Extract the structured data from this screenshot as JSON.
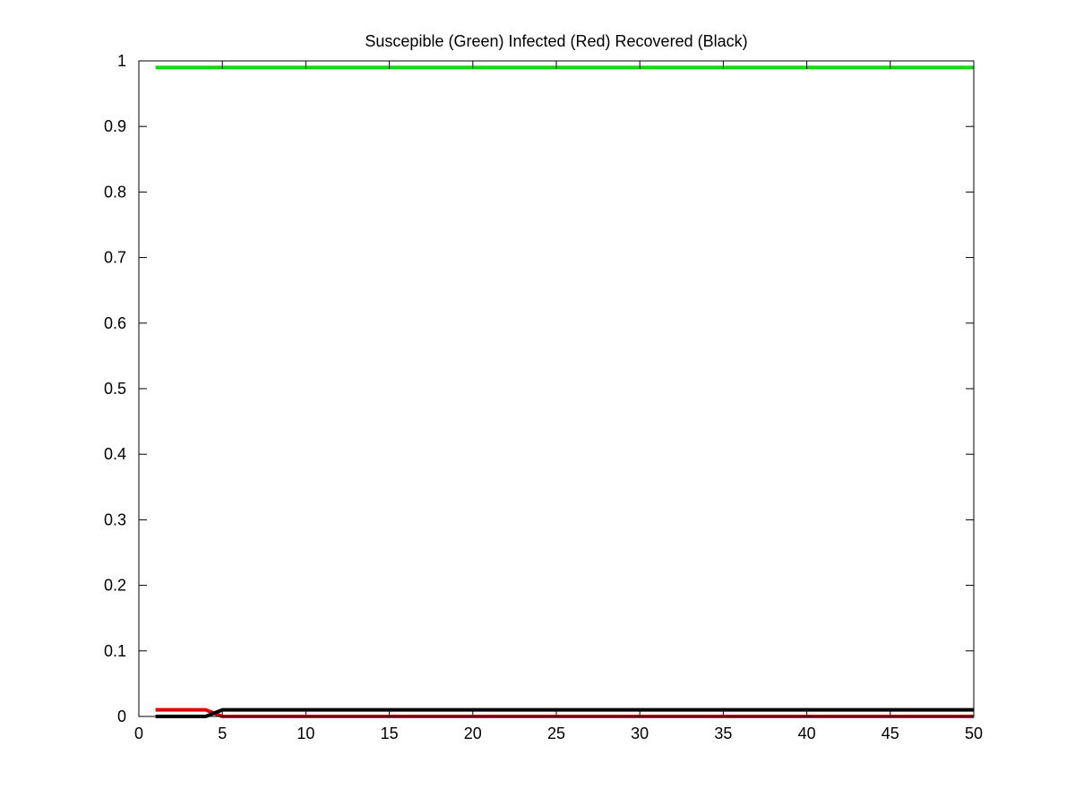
{
  "chart_data": {
    "type": "line",
    "title": "Suscepible (Green) Infected (Red) Recovered (Black)",
    "xlabel": "",
    "ylabel": "",
    "xlim": [
      0,
      50
    ],
    "ylim": [
      0,
      1
    ],
    "xticks": [
      0,
      5,
      10,
      15,
      20,
      25,
      30,
      35,
      40,
      45,
      50
    ],
    "yticks": [
      0,
      0.1,
      0.2,
      0.3,
      0.4,
      0.5,
      0.6,
      0.7,
      0.8,
      0.9,
      1
    ],
    "grid": false,
    "legend": "none",
    "series": [
      {
        "color": "#00e000",
        "x": [
          1,
          50
        ],
        "y": [
          0.99,
          0.99
        ]
      },
      {
        "color": "#e00000",
        "x": [
          1,
          4,
          5,
          50
        ],
        "y": [
          0.01,
          0.01,
          0,
          0
        ]
      },
      {
        "color": "#000000",
        "x": [
          1,
          4,
          5,
          50
        ],
        "y": [
          0,
          0,
          0.01,
          0.01
        ]
      }
    ]
  }
}
